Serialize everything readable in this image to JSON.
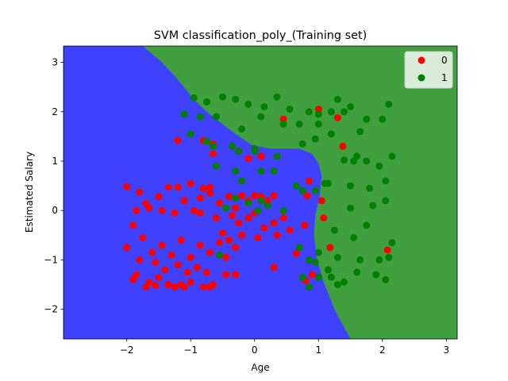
{
  "chart_data": {
    "type": "scatter",
    "title": "SVM classification_poly_(Training set)",
    "xlabel": "Age",
    "ylabel": "Estimated Salary",
    "xlim": [
      -2.99,
      3.17
    ],
    "ylim": [
      -2.6,
      3.33
    ],
    "xticks": [
      -2,
      -1,
      0,
      1,
      2,
      3
    ],
    "yticks": [
      -2,
      -1,
      0,
      1,
      2,
      3
    ],
    "xtick_labels": [
      "−2",
      "−1",
      "0",
      "1",
      "2",
      "3"
    ],
    "ytick_labels": [
      "−2",
      "−1",
      "0",
      "1",
      "2",
      "3"
    ],
    "grid": false,
    "legend_position": "top-right",
    "legend": [
      {
        "label": "0",
        "color": "#ff0000"
      },
      {
        "label": "1",
        "color": "#008000"
      }
    ],
    "decision_regions": {
      "class_0_color": "#4040ff",
      "class_1_color": "#40a040",
      "boundary": [
        [
          -1.75,
          3.33
        ],
        [
          -1.45,
          3.0
        ],
        [
          -1.2,
          2.65
        ],
        [
          -0.95,
          2.25
        ],
        [
          -0.75,
          2.0
        ],
        [
          -0.55,
          1.8
        ],
        [
          -0.3,
          1.55
        ],
        [
          -0.05,
          1.33
        ],
        [
          0.25,
          1.25
        ],
        [
          0.7,
          1.25
        ],
        [
          0.9,
          1.15
        ],
        [
          1.0,
          0.95
        ],
        [
          1.05,
          0.7
        ],
        [
          1.02,
          0.3
        ],
        [
          0.95,
          -0.1
        ],
        [
          0.93,
          -0.5
        ],
        [
          0.97,
          -0.95
        ],
        [
          1.08,
          -1.45
        ],
        [
          1.25,
          -2.0
        ],
        [
          1.5,
          -2.6
        ]
      ]
    },
    "series": [
      {
        "name": "0",
        "color": "#ff0000",
        "points": [
          [
            -2.0,
            0.48
          ],
          [
            -1.8,
            0.37
          ],
          [
            -1.7,
            0.14
          ],
          [
            -1.85,
            0.0
          ],
          [
            -1.5,
            0.28
          ],
          [
            -1.35,
            0.47
          ],
          [
            -1.2,
            0.47
          ],
          [
            -1.0,
            0.55
          ],
          [
            -0.8,
            0.45
          ],
          [
            -0.7,
            0.47
          ],
          [
            -1.65,
            0.05
          ],
          [
            -1.45,
            0.0
          ],
          [
            -1.25,
            -0.05
          ],
          [
            -1.1,
            0.2
          ],
          [
            -0.95,
            0.0
          ],
          [
            -0.85,
            -0.05
          ],
          [
            -0.7,
            0.35
          ],
          [
            -0.55,
            0.15
          ],
          [
            -0.4,
            0.28
          ],
          [
            -0.3,
            0.05
          ],
          [
            -0.2,
            0.3
          ],
          [
            -0.1,
            0.2
          ],
          [
            0.0,
            0.3
          ],
          [
            0.1,
            0.28
          ],
          [
            0.2,
            0.2
          ],
          [
            0.3,
            0.3
          ],
          [
            -0.35,
            -0.1
          ],
          [
            -0.25,
            -0.25
          ],
          [
            -0.1,
            -0.15
          ],
          [
            0.0,
            -0.05
          ],
          [
            0.15,
            -0.35
          ],
          [
            0.3,
            -0.25
          ],
          [
            0.45,
            -0.15
          ],
          [
            -0.5,
            -0.45
          ],
          [
            -0.4,
            -0.6
          ],
          [
            -0.2,
            -0.5
          ],
          [
            0.05,
            -0.55
          ],
          [
            0.35,
            -0.5
          ],
          [
            0.55,
            -0.4
          ],
          [
            -1.9,
            -0.3
          ],
          [
            -1.75,
            -0.55
          ],
          [
            -1.6,
            -0.85
          ],
          [
            -1.45,
            -0.7
          ],
          [
            -1.3,
            -0.9
          ],
          [
            -1.15,
            -0.6
          ],
          [
            -1.0,
            -0.95
          ],
          [
            -0.85,
            -0.7
          ],
          [
            -0.7,
            -0.85
          ],
          [
            -0.55,
            -0.65
          ],
          [
            -0.45,
            -0.95
          ],
          [
            -0.3,
            -0.75
          ],
          [
            -2.0,
            -0.75
          ],
          [
            -1.8,
            -1.0
          ],
          [
            -1.55,
            -1.05
          ],
          [
            -1.4,
            -1.2
          ],
          [
            -1.2,
            -1.1
          ],
          [
            -1.05,
            -1.25
          ],
          [
            -0.9,
            -1.15
          ],
          [
            -0.75,
            -1.25
          ],
          [
            -1.85,
            -1.3
          ],
          [
            -1.65,
            -1.45
          ],
          [
            -1.5,
            -1.35
          ],
          [
            -1.35,
            -1.5
          ],
          [
            -1.15,
            -1.5
          ],
          [
            -1.0,
            -1.45
          ],
          [
            -0.8,
            -1.55
          ],
          [
            -0.65,
            -1.5
          ],
          [
            -0.45,
            -1.3
          ],
          [
            -0.3,
            -1.3
          ],
          [
            -1.9,
            -1.4
          ],
          [
            -1.7,
            -1.55
          ],
          [
            -1.55,
            -1.52
          ],
          [
            -1.25,
            -1.55
          ],
          [
            -1.1,
            -1.55
          ],
          [
            -0.7,
            -1.55
          ],
          [
            -1.2,
            1.42
          ],
          [
            -0.8,
            1.42
          ],
          [
            -0.65,
            1.35
          ],
          [
            -0.25,
            1.2
          ],
          [
            -0.1,
            1.05
          ],
          [
            0.1,
            1.1
          ],
          [
            -0.65,
            1.15
          ],
          [
            0.45,
            1.85
          ],
          [
            1.0,
            2.05
          ],
          [
            1.3,
            1.88
          ],
          [
            1.38,
            1.3
          ],
          [
            0.85,
            0.6
          ],
          [
            0.82,
            0.3
          ],
          [
            1.05,
            0.2
          ],
          [
            1.08,
            -0.15
          ],
          [
            0.78,
            -0.3
          ],
          [
            0.65,
            -0.87
          ],
          [
            0.9,
            -1.3
          ],
          [
            0.8,
            -1.42
          ],
          [
            1.18,
            -0.75
          ],
          [
            2.08,
            -0.8
          ],
          [
            0.3,
            -1.15
          ],
          [
            -0.6,
            -0.15
          ],
          [
            -0.85,
            0.25
          ]
        ]
      },
      {
        "name": "1",
        "color": "#008000",
        "points": [
          [
            -1.1,
            1.95
          ],
          [
            -0.95,
            2.28
          ],
          [
            -0.75,
            2.2
          ],
          [
            -0.5,
            2.3
          ],
          [
            -0.3,
            2.25
          ],
          [
            -0.1,
            2.15
          ],
          [
            0.15,
            2.1
          ],
          [
            0.35,
            2.3
          ],
          [
            0.55,
            2.05
          ],
          [
            -0.85,
            1.9
          ],
          [
            -0.6,
            1.9
          ],
          [
            -0.2,
            1.65
          ],
          [
            0.1,
            1.9
          ],
          [
            0.45,
            1.75
          ],
          [
            0.7,
            1.75
          ],
          [
            0.85,
            2.0
          ],
          [
            1.0,
            1.95
          ],
          [
            1.0,
            1.75
          ],
          [
            1.2,
            2.0
          ],
          [
            1.3,
            2.25
          ],
          [
            1.4,
            2.0
          ],
          [
            1.5,
            2.1
          ],
          [
            1.65,
            1.6
          ],
          [
            1.75,
            1.85
          ],
          [
            2.0,
            1.85
          ],
          [
            2.1,
            2.15
          ],
          [
            -1.0,
            1.55
          ],
          [
            -0.75,
            1.4
          ],
          [
            -0.65,
            1.3
          ],
          [
            -0.35,
            1.3
          ],
          [
            -0.25,
            1.2
          ],
          [
            0.0,
            1.25
          ],
          [
            0.35,
            1.1
          ],
          [
            0.75,
            1.35
          ],
          [
            0.95,
            1.45
          ],
          [
            1.2,
            1.55
          ],
          [
            1.4,
            1.02
          ],
          [
            1.55,
            1.0
          ],
          [
            1.6,
            1.1
          ],
          [
            1.75,
            1.0
          ],
          [
            1.95,
            0.9
          ],
          [
            2.15,
            1.1
          ],
          [
            -0.6,
            0.9
          ],
          [
            -0.3,
            0.8
          ],
          [
            0.1,
            0.8
          ],
          [
            0.3,
            0.8
          ],
          [
            0.65,
            0.5
          ],
          [
            0.75,
            0.4
          ],
          [
            0.95,
            0.4
          ],
          [
            1.1,
            0.55
          ],
          [
            1.5,
            0.5
          ],
          [
            1.8,
            0.45
          ],
          [
            2.05,
            0.6
          ],
          [
            1.15,
            0.55
          ],
          [
            -0.3,
            0.25
          ],
          [
            -0.1,
            0.15
          ],
          [
            0.05,
            0.0
          ],
          [
            0.2,
            0.1
          ],
          [
            0.45,
            0.0
          ],
          [
            1.5,
            0.05
          ],
          [
            1.85,
            0.1
          ],
          [
            2.05,
            0.2
          ],
          [
            1.25,
            -0.4
          ],
          [
            1.55,
            -0.55
          ],
          [
            1.75,
            -0.3
          ],
          [
            0.7,
            -0.75
          ],
          [
            1.0,
            -0.85
          ],
          [
            1.3,
            -0.95
          ],
          [
            1.65,
            -1.0
          ],
          [
            1.95,
            -1.0
          ],
          [
            2.1,
            -0.95
          ],
          [
            2.15,
            -0.65
          ],
          [
            0.75,
            -1.35
          ],
          [
            0.85,
            -1.55
          ],
          [
            1.0,
            -1.35
          ],
          [
            1.2,
            -1.35
          ],
          [
            1.4,
            -1.45
          ],
          [
            1.6,
            -1.25
          ],
          [
            1.9,
            -1.3
          ],
          [
            2.05,
            -1.4
          ],
          [
            0.95,
            -1.05
          ],
          [
            1.15,
            -1.2
          ],
          [
            1.3,
            -1.5
          ],
          [
            0.85,
            -1.0
          ],
          [
            -0.55,
            -0.9
          ],
          [
            -0.2,
            0.6
          ],
          [
            0.1,
            0.2
          ],
          [
            0.0,
            1.2
          ],
          [
            -0.45,
            0.05
          ]
        ]
      }
    ]
  }
}
